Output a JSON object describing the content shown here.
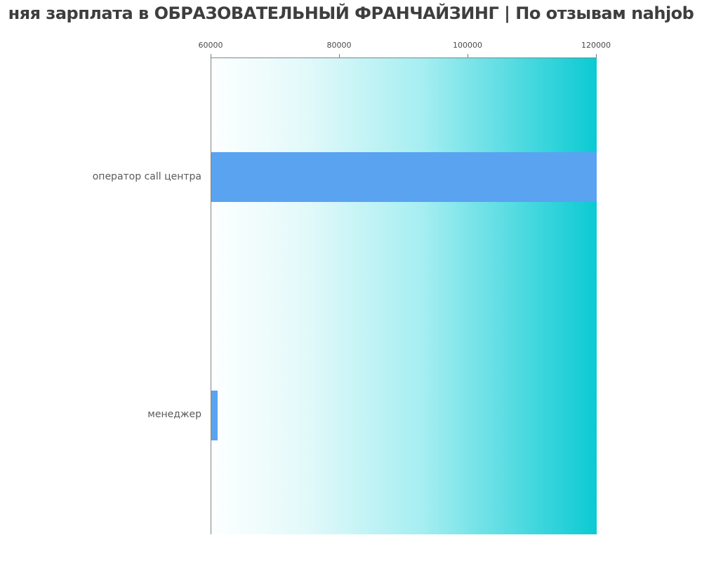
{
  "title": "няя зарплата в ОБРАЗОВАТЕЛЬНЫЙ ФРАНЧАЙЗИНГ | По отзывам nahjob",
  "colors": {
    "bar": "#5aa3f1",
    "gradient_start": "#fdffff",
    "gradient_end": "#0bcad3",
    "spine": "#828282",
    "title_text": "#3e3e3e",
    "category_text": "#5a5a5a",
    "tick_text": "#4a4a4a"
  },
  "chart_data": {
    "type": "bar",
    "orientation": "horizontal",
    "title": "няя зарплата в ОБРАЗОВАТЕЛЬНЫЙ ФРАНЧАЙЗИНГ | По отзывам nahjob",
    "categories": [
      "оператор call центра",
      "менеджер"
    ],
    "values": [
      120000,
      61000
    ],
    "xlabel": "",
    "ylabel": "",
    "xlim": [
      60000,
      120000
    ],
    "x_ticks": [
      60000,
      80000,
      100000,
      120000
    ],
    "x_tick_labels": [
      "60000",
      "80000",
      "100000",
      "120000"
    ],
    "x_axis_position": "top",
    "grid": false,
    "legend": false,
    "plot_background": "gradient white to cyan, left to right"
  }
}
